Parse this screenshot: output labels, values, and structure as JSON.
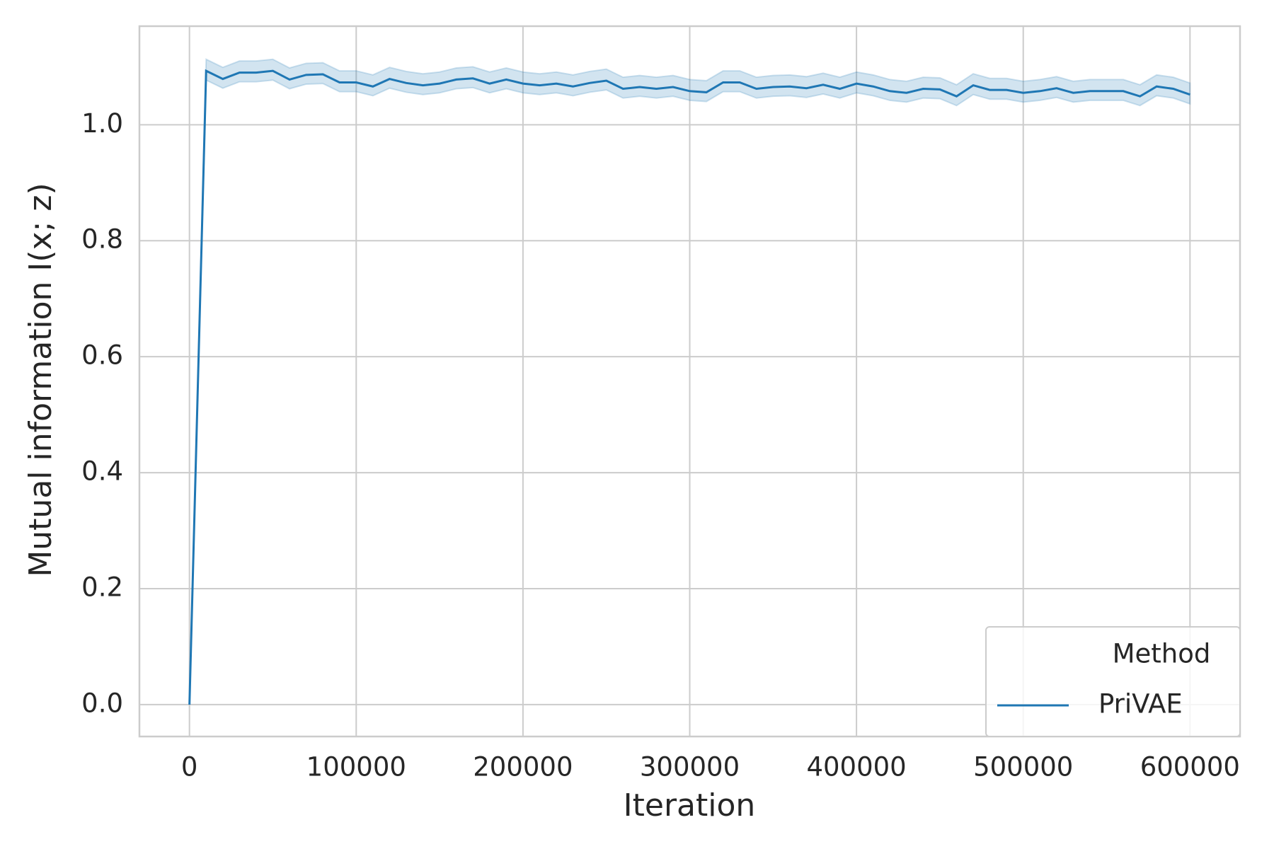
{
  "chart_data": {
    "type": "line",
    "xlabel": "Iteration",
    "ylabel": "Mutual information I(x; z)",
    "x": [
      0,
      10000,
      20000,
      30000,
      40000,
      50000,
      60000,
      70000,
      80000,
      90000,
      100000,
      110000,
      120000,
      130000,
      140000,
      150000,
      160000,
      170000,
      180000,
      190000,
      200000,
      210000,
      220000,
      230000,
      240000,
      250000,
      260000,
      270000,
      280000,
      290000,
      300000,
      310000,
      320000,
      330000,
      340000,
      350000,
      360000,
      370000,
      380000,
      390000,
      400000,
      410000,
      420000,
      430000,
      440000,
      450000,
      460000,
      470000,
      480000,
      490000,
      500000,
      510000,
      520000,
      530000,
      540000,
      550000,
      560000,
      570000,
      580000,
      590000,
      600000
    ],
    "series": [
      {
        "name": "PriVAE",
        "color": "#1f77b4",
        "values": [
          0,
          1.093,
          1.079,
          1.09,
          1.09,
          1.093,
          1.078,
          1.086,
          1.087,
          1.073,
          1.073,
          1.066,
          1.079,
          1.072,
          1.068,
          1.071,
          1.078,
          1.08,
          1.071,
          1.078,
          1.071,
          1.068,
          1.071,
          1.066,
          1.072,
          1.076,
          1.062,
          1.065,
          1.062,
          1.065,
          1.058,
          1.056,
          1.073,
          1.073,
          1.062,
          1.065,
          1.066,
          1.063,
          1.069,
          1.062,
          1.071,
          1.066,
          1.058,
          1.055,
          1.062,
          1.061,
          1.049,
          1.068,
          1.06,
          1.06,
          1.055,
          1.058,
          1.063,
          1.055,
          1.058,
          1.058,
          1.058,
          1.049,
          1.066,
          1.062,
          1.052
        ],
        "upper": [
          0,
          1.113,
          1.099,
          1.11,
          1.11,
          1.113,
          1.098,
          1.106,
          1.107,
          1.093,
          1.093,
          1.086,
          1.099,
          1.092,
          1.088,
          1.091,
          1.098,
          1.1,
          1.091,
          1.098,
          1.091,
          1.088,
          1.091,
          1.086,
          1.092,
          1.096,
          1.082,
          1.085,
          1.082,
          1.085,
          1.078,
          1.076,
          1.093,
          1.093,
          1.082,
          1.085,
          1.086,
          1.083,
          1.089,
          1.082,
          1.091,
          1.086,
          1.078,
          1.075,
          1.082,
          1.081,
          1.069,
          1.088,
          1.08,
          1.08,
          1.075,
          1.078,
          1.083,
          1.075,
          1.078,
          1.078,
          1.078,
          1.069,
          1.086,
          1.082,
          1.072
        ],
        "lower": [
          0,
          1.077,
          1.063,
          1.074,
          1.074,
          1.077,
          1.062,
          1.07,
          1.071,
          1.057,
          1.057,
          1.05,
          1.063,
          1.056,
          1.052,
          1.055,
          1.062,
          1.064,
          1.055,
          1.062,
          1.055,
          1.052,
          1.055,
          1.05,
          1.056,
          1.06,
          1.046,
          1.049,
          1.046,
          1.049,
          1.042,
          1.04,
          1.057,
          1.057,
          1.046,
          1.049,
          1.05,
          1.047,
          1.053,
          1.046,
          1.055,
          1.05,
          1.042,
          1.039,
          1.046,
          1.045,
          1.033,
          1.052,
          1.044,
          1.044,
          1.039,
          1.042,
          1.047,
          1.039,
          1.042,
          1.042,
          1.042,
          1.033,
          1.05,
          1.046,
          1.036
        ]
      }
    ],
    "xlim": [
      -30000,
      630000
    ],
    "ylim": [
      -0.055,
      1.17
    ],
    "xticks": [
      0,
      100000,
      200000,
      300000,
      400000,
      500000,
      600000
    ],
    "yticks": [
      {
        "value": 0,
        "label": "0.0"
      },
      {
        "value": 0.2,
        "label": "0.2"
      },
      {
        "value": 0.4,
        "label": "0.4"
      },
      {
        "value": 0.6,
        "label": "0.6"
      },
      {
        "value": 0.8,
        "label": "0.8"
      },
      {
        "value": 1,
        "label": "1.0"
      }
    ],
    "grid": true,
    "legend": {
      "title": "Method",
      "position": "lower right"
    }
  }
}
